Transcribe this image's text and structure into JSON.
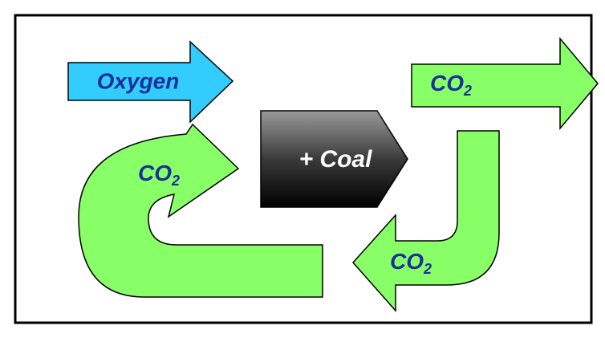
{
  "nodes": [
    {
      "label": "Oxygen"
    },
    {
      "label": {
        "main": "CO",
        "sub": "2"
      }
    },
    {
      "label": "+ Coal"
    },
    {
      "label": {
        "main": "CO",
        "sub": "2"
      }
    },
    {
      "label": {
        "main": "CO",
        "sub": "2"
      }
    }
  ]
}
